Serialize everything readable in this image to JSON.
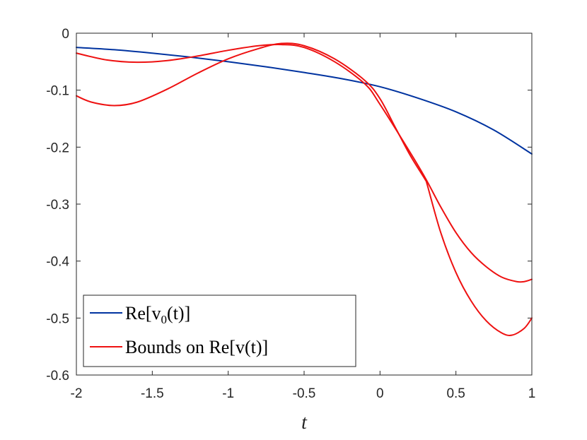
{
  "chart_data": {
    "type": "line",
    "title": "",
    "xlabel": "t",
    "ylabel": "",
    "xlim": [
      -2,
      1
    ],
    "ylim": [
      -0.6,
      0
    ],
    "xticks": [
      -2,
      -1.5,
      -1,
      -0.5,
      0,
      0.5,
      1
    ],
    "yticks": [
      0,
      -0.1,
      -0.2,
      -0.3,
      -0.4,
      -0.5,
      -0.6
    ],
    "xtick_labels": [
      "-2",
      "-1.5",
      "-1",
      "-0.5",
      "0",
      "0.5",
      "1"
    ],
    "ytick_labels": [
      "0",
      "-0.1",
      "-0.2",
      "-0.3",
      "-0.4",
      "-0.5",
      "-0.6"
    ],
    "grid": false,
    "legend_position": "bottom-left",
    "legend": [
      {
        "label_main": "Re[v",
        "label_sub": "0",
        "label_tail": "(t)]",
        "color": "#0033a0"
      },
      {
        "label_main": "Bounds on Re[v(t)]",
        "label_sub": "",
        "label_tail": "",
        "color": "#ee1111"
      }
    ],
    "series": [
      {
        "color": "#0033a0",
        "x": [
          -2,
          -1.75,
          -1.5,
          -1.25,
          -1,
          -0.75,
          -0.5,
          -0.25,
          0,
          0.25,
          0.5,
          0.75,
          1
        ],
        "y": [
          -0.025,
          -0.029,
          -0.035,
          -0.042,
          -0.05,
          -0.059,
          -0.069,
          -0.08,
          -0.094,
          -0.114,
          -0.138,
          -0.17,
          -0.212
        ]
      },
      {
        "color": "#ee1111",
        "x": [
          -2,
          -1.8,
          -1.6,
          -1.4,
          -1.2,
          -1,
          -0.8,
          -0.65,
          -0.5,
          -0.3,
          -0.1,
          0,
          0.2,
          0.3,
          0.4,
          0.5,
          0.6,
          0.7,
          0.8,
          0.9,
          0.95,
          1
        ],
        "y": [
          -0.035,
          -0.047,
          -0.051,
          -0.048,
          -0.04,
          -0.03,
          -0.022,
          -0.02,
          -0.025,
          -0.05,
          -0.089,
          -0.125,
          -0.21,
          -0.255,
          -0.305,
          -0.35,
          -0.385,
          -0.41,
          -0.428,
          -0.436,
          -0.436,
          -0.432
        ]
      },
      {
        "color": "#ee1111",
        "x": [
          -2,
          -1.9,
          -1.75,
          -1.6,
          -1.4,
          -1.2,
          -1,
          -0.8,
          -0.65,
          -0.5,
          -0.3,
          -0.1,
          0,
          0.1,
          0.2,
          0.3,
          0.31,
          0.4,
          0.5,
          0.6,
          0.7,
          0.8,
          0.87,
          0.95,
          1
        ],
        "y": [
          -0.11,
          -0.121,
          -0.127,
          -0.121,
          -0.098,
          -0.07,
          -0.045,
          -0.027,
          -0.018,
          -0.022,
          -0.045,
          -0.083,
          -0.115,
          -0.165,
          -0.215,
          -0.258,
          -0.265,
          -0.35,
          -0.42,
          -0.47,
          -0.505,
          -0.526,
          -0.53,
          -0.518,
          -0.5
        ]
      }
    ]
  }
}
